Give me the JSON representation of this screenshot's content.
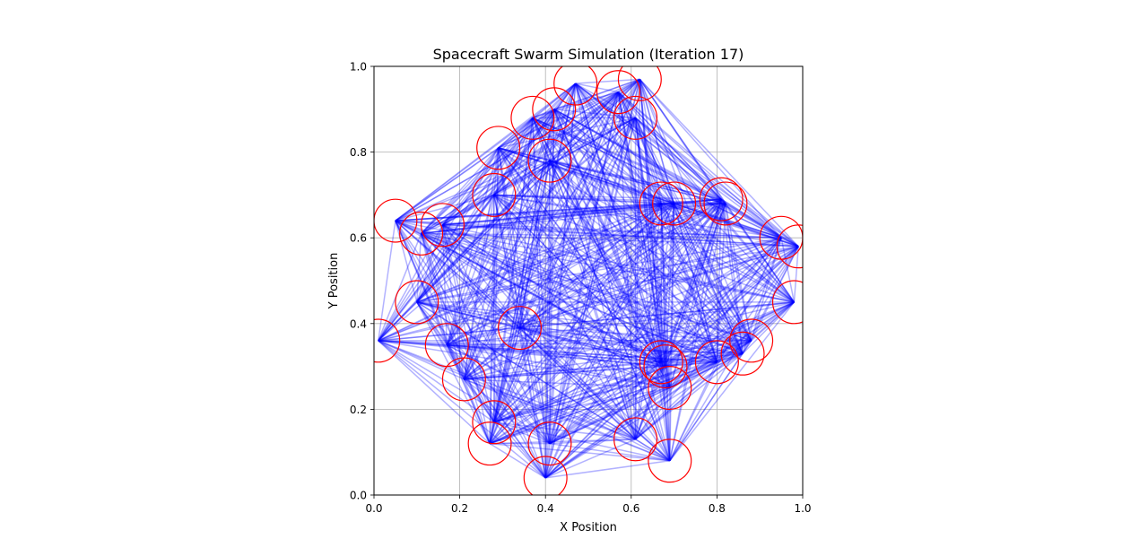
{
  "chart_data": {
    "type": "scatter",
    "title": "Spacecraft Swarm Simulation (Iteration 17)",
    "xlabel": "X Position",
    "ylabel": "Y Position",
    "xlim": [
      0.0,
      1.0
    ],
    "ylim": [
      0.0,
      1.0
    ],
    "xticks": [
      "0.0",
      "0.2",
      "0.4",
      "0.6",
      "0.8",
      "1.0"
    ],
    "yticks": [
      "0.0",
      "0.2",
      "0.4",
      "0.6",
      "0.8",
      "1.0"
    ],
    "grid": true,
    "radius": 0.05,
    "connection_color": "#0000ff",
    "circle_color": "#ff0000",
    "spacecraft": [
      {
        "x": 0.47,
        "y": 0.96
      },
      {
        "x": 0.62,
        "y": 0.97
      },
      {
        "x": 0.57,
        "y": 0.94
      },
      {
        "x": 0.42,
        "y": 0.9
      },
      {
        "x": 0.37,
        "y": 0.88
      },
      {
        "x": 0.61,
        "y": 0.88
      },
      {
        "x": 0.29,
        "y": 0.81
      },
      {
        "x": 0.41,
        "y": 0.78
      },
      {
        "x": 0.28,
        "y": 0.7
      },
      {
        "x": 0.05,
        "y": 0.64
      },
      {
        "x": 0.16,
        "y": 0.63
      },
      {
        "x": 0.11,
        "y": 0.61
      },
      {
        "x": 0.67,
        "y": 0.68
      },
      {
        "x": 0.7,
        "y": 0.68
      },
      {
        "x": 0.81,
        "y": 0.69
      },
      {
        "x": 0.82,
        "y": 0.68
      },
      {
        "x": 0.95,
        "y": 0.6
      },
      {
        "x": 0.99,
        "y": 0.58
      },
      {
        "x": 0.98,
        "y": 0.45
      },
      {
        "x": 0.1,
        "y": 0.45
      },
      {
        "x": 0.34,
        "y": 0.39
      },
      {
        "x": 0.01,
        "y": 0.36
      },
      {
        "x": 0.17,
        "y": 0.35
      },
      {
        "x": 0.88,
        "y": 0.36
      },
      {
        "x": 0.86,
        "y": 0.33
      },
      {
        "x": 0.8,
        "y": 0.31
      },
      {
        "x": 0.67,
        "y": 0.31
      },
      {
        "x": 0.68,
        "y": 0.3
      },
      {
        "x": 0.69,
        "y": 0.25
      },
      {
        "x": 0.21,
        "y": 0.27
      },
      {
        "x": 0.28,
        "y": 0.17
      },
      {
        "x": 0.27,
        "y": 0.12
      },
      {
        "x": 0.41,
        "y": 0.12
      },
      {
        "x": 0.61,
        "y": 0.13
      },
      {
        "x": 0.69,
        "y": 0.08
      },
      {
        "x": 0.4,
        "y": 0.04
      }
    ]
  }
}
